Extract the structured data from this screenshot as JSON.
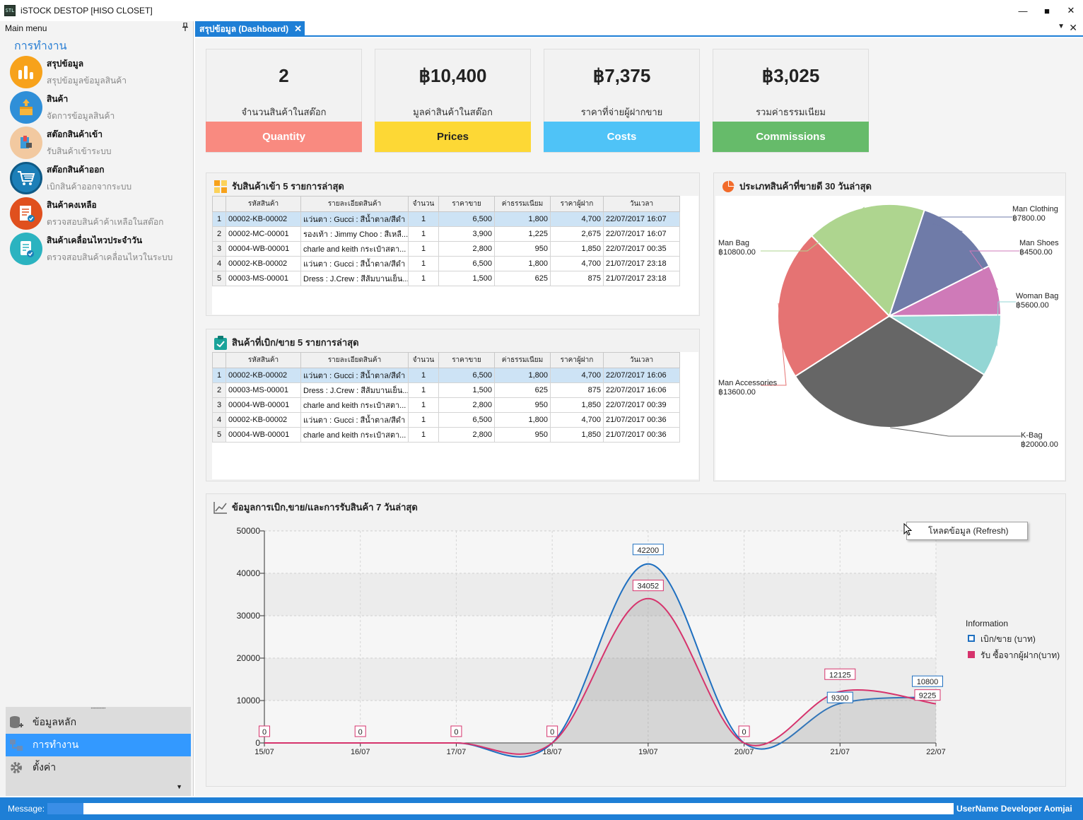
{
  "window": {
    "title": "iSTOCK DESTOP [HISO CLOSET]",
    "icon_text": "STL",
    "minimize": "—",
    "maximize": "■",
    "close": "✕"
  },
  "sidebar": {
    "header": "Main menu",
    "section": "การทำงาน",
    "items": [
      {
        "title": "สรุปข้อมูล",
        "subtitle": "สรุปข้อมูลข้อมูลสินค้า",
        "icon": "bar-chart-icon",
        "color": "#f7a21b"
      },
      {
        "title": "สินค้า",
        "subtitle": "จัดการข้อมูลสินค้า",
        "icon": "box-icon",
        "color": "#2f8fd8"
      },
      {
        "title": "สต๊อกสินค้าเข้า",
        "subtitle": "รับสินค้าเข้าระบบ",
        "icon": "stock-in-icon",
        "color": "#f2c9a0"
      },
      {
        "title": "สต๊อกสินค้าออก",
        "subtitle": "เบิกสินค้าออกจากระบบ",
        "icon": "cart-icon",
        "color": "#1c7fb8"
      },
      {
        "title": "สินค้าคงเหลือ",
        "subtitle": "ตรวจสอบสินค้าค้าเหลือในสต๊อก",
        "icon": "checklist-icon",
        "color": "#e0501e"
      },
      {
        "title": "สินค้าเคลื่อนไหวประจำวัน",
        "subtitle": "ตรวจสอบสินค้าเคลื่อนไหวในระบบ",
        "icon": "document-check-icon",
        "color": "#2bb3c0"
      }
    ],
    "bottom": [
      {
        "label": "ข้อมูลหลัก",
        "icon": "database-icon"
      },
      {
        "label": "การทำงาน",
        "icon": "workflow-icon"
      },
      {
        "label": "ตั้งค่า",
        "icon": "gear-icon"
      }
    ]
  },
  "tab": {
    "label": "สรุปข้อมูล (Dashboard)"
  },
  "kpis": [
    {
      "value": "2",
      "label": "จำนวนสินค้าในสต๊อก",
      "foot": "Quantity",
      "color": "#f98a80",
      "text": "#ffffff"
    },
    {
      "value": "฿10,400",
      "label": "มูลค่าสินค้าในสต๊อก",
      "foot": "Prices",
      "color": "#fdd835",
      "text": "#222222"
    },
    {
      "value": "฿7,375",
      "label": "ราคาที่จ่ายผู้ฝากขาย",
      "foot": "Costs",
      "color": "#4fc3f7",
      "text": "#ffffff"
    },
    {
      "value": "฿3,025",
      "label": "รวมค่าธรรมเนียม",
      "foot": "Commissions",
      "color": "#66bb6a",
      "text": "#ffffff"
    }
  ],
  "tables": {
    "headers": [
      "",
      "รหัสสินค้า",
      "รายละเอียดสินค้า",
      "จำนวน",
      "ราคาขาย",
      "ค่าธรรมเนียม",
      "ราคาผู้ฝาก",
      "วันเวลา"
    ],
    "incoming": {
      "title": "รับสินค้าเข้า 5 รายการล่าสุด",
      "rows": [
        [
          "1",
          "00002-KB-00002",
          "แว่นตา : Gucci : สีน้ำตาล/สีดำ",
          "1",
          "6,500",
          "1,800",
          "4,700",
          "22/07/2017 16:07"
        ],
        [
          "2",
          "00002-MC-00001",
          "รองเท้า : Jimmy Choo : สีเหลื...",
          "1",
          "3,900",
          "1,225",
          "2,675",
          "22/07/2017 16:07"
        ],
        [
          "3",
          "00004-WB-00001",
          "charle and keith กระเป๋าสตา...",
          "1",
          "2,800",
          "950",
          "1,850",
          "22/07/2017 00:35"
        ],
        [
          "4",
          "00002-KB-00002",
          "แว่นตา : Gucci : สีน้ำตาล/สีดำ",
          "1",
          "6,500",
          "1,800",
          "4,700",
          "21/07/2017 23:18"
        ],
        [
          "5",
          "00003-MS-00001",
          "Dress : J.Crew : สีส้มบานเย็น...",
          "1",
          "1,500",
          "625",
          "875",
          "21/07/2017 23:18"
        ]
      ]
    },
    "outgoing": {
      "title": "สินค้าที่เบิก/ขาย 5 รายการล่าสุด",
      "rows": [
        [
          "1",
          "00002-KB-00002",
          "แว่นตา : Gucci : สีน้ำตาล/สีดำ",
          "1",
          "6,500",
          "1,800",
          "4,700",
          "22/07/2017 16:06"
        ],
        [
          "2",
          "00003-MS-00001",
          "Dress : J.Crew : สีส้มบานเย็น...",
          "1",
          "1,500",
          "625",
          "875",
          "22/07/2017 16:06"
        ],
        [
          "3",
          "00004-WB-00001",
          "charle and keith กระเป๋าสตา...",
          "1",
          "2,800",
          "950",
          "1,850",
          "22/07/2017 00:39"
        ],
        [
          "4",
          "00002-KB-00002",
          "แว่นตา : Gucci : สีน้ำตาล/สีดำ",
          "1",
          "6,500",
          "1,800",
          "4,700",
          "21/07/2017 00:36"
        ],
        [
          "5",
          "00004-WB-00001",
          "charle and keith กระเป๋าสตา...",
          "1",
          "2,800",
          "950",
          "1,850",
          "21/07/2017 00:36"
        ]
      ]
    }
  },
  "pie_title": "ประเภทสินค้าที่ขายดี 30 วันล่าสุด",
  "line_title": "ข้อมูลการเบิก,ขาย/และการรับสินค้า 7 วันล่าสุด",
  "chart_data": [
    {
      "type": "pie",
      "title": "ประเภทสินค้าที่ขายดี 30 วันล่าสุด",
      "slices": [
        {
          "label": "Man Clothing",
          "value": 7800,
          "display": "฿7800.00",
          "color": "#6f7ba8"
        },
        {
          "label": "Man Shoes",
          "value": 4500,
          "display": "฿4500.00",
          "color": "#cf7ab8"
        },
        {
          "label": "Woman Bag",
          "value": 5600,
          "display": "฿5600.00",
          "color": "#93d6d4"
        },
        {
          "label": "K-Bag",
          "value": 20000,
          "display": "฿20000.00",
          "color": "#666666"
        },
        {
          "label": "Man Accessories",
          "value": 13600,
          "display": "฿13600.00",
          "color": "#e57373"
        },
        {
          "label": "Man Bag",
          "value": 10800,
          "display": "฿10800.00",
          "color": "#aed58f"
        }
      ]
    },
    {
      "type": "line",
      "title": "ข้อมูลการเบิก,ขาย/และการรับสินค้า 7 วันล่าสุด",
      "categories": [
        "15/07",
        "16/07",
        "17/07",
        "18/07",
        "19/07",
        "20/07",
        "21/07",
        "22/07"
      ],
      "ylim": [
        0,
        50000
      ],
      "yticks": [
        0,
        10000,
        20000,
        30000,
        40000,
        50000
      ],
      "grid": true,
      "legend_title": "Information",
      "legend_position": "right",
      "series": [
        {
          "name": "เบิก/ขาย (บาท)",
          "color": "#1e6fc0",
          "values": [
            0,
            0,
            0,
            0,
            42200,
            0,
            9300,
            10800
          ]
        },
        {
          "name": "รับ ซื้อจากผู้ฝาก(บาท)",
          "color": "#d6336c",
          "values": [
            0,
            0,
            0,
            0,
            34052,
            0,
            12125,
            9225
          ]
        }
      ]
    }
  ],
  "context_menu": {
    "label": "โหลดข้อมูล (Refresh)"
  },
  "status": {
    "label": "Message:",
    "progress": 0.04,
    "user": "UserName Developer Aomjai"
  }
}
